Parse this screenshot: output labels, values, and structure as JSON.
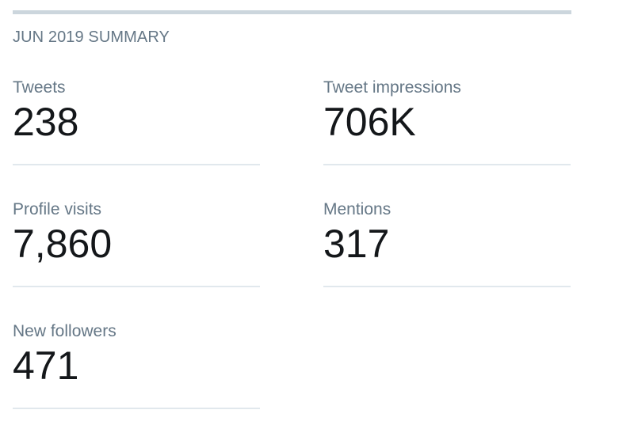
{
  "summary": {
    "title": "JUN 2019 SUMMARY",
    "metrics": [
      {
        "label": "Tweets",
        "value": "238"
      },
      {
        "label": "Tweet impressions",
        "value": "706K"
      },
      {
        "label": "Profile visits",
        "value": "7,860"
      },
      {
        "label": "Mentions",
        "value": "317"
      },
      {
        "label": "New followers",
        "value": "471"
      }
    ]
  },
  "colors": {
    "label_gray": "#657786",
    "value_dark": "#14171a",
    "divider": "#e1e8ed",
    "top_bar": "#ccd6dd"
  }
}
